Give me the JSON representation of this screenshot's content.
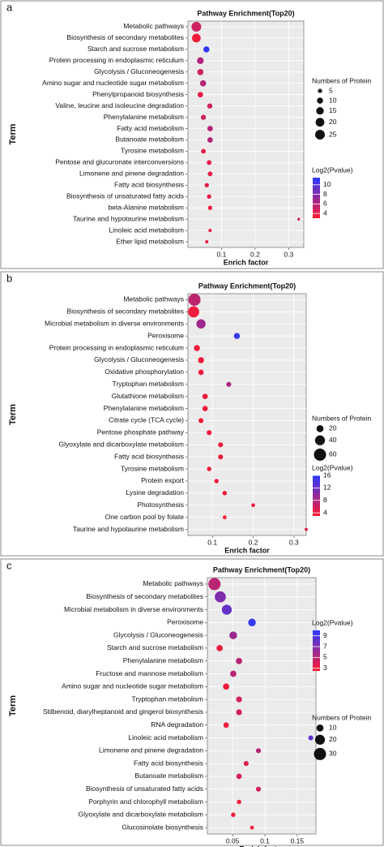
{
  "chart_data": [
    {
      "type": "bubble",
      "panel_label": "a",
      "title": "Pathway Enrichment(Top20)",
      "x_label": "Enrich factor",
      "y_label": "Term",
      "categories": [
        "Metabolic pathways",
        "Biosynthesis of secondary metabolites",
        "Starch and sucrose metabolism",
        "Protein processing in endoplasmic reticulum",
        "Glycolysis / Gluconeogenesis",
        "Amino sugar and nucleotide sugar metabolism",
        "Phenylpropanoid biosynthesis",
        "Valine, leucine and isoleucine degradation",
        "Phenylalanine metabolism",
        "Fatty acid metabolism",
        "Butanoate metabolism",
        "Tyrosine metabolism",
        "Pentose and glucuronate interconversions",
        "Limonene and pinene degradation",
        "Fatty acid biosynthesis",
        "Biosynthesis of unsaturated fatty acids",
        "beta-Alanine metabolism",
        "Taurine and hypotaurine metabolism",
        "Linoleic acid metabolism",
        "Ether lipid metabolism"
      ],
      "x": [
        0.025,
        0.025,
        0.055,
        0.037,
        0.037,
        0.045,
        0.037,
        0.065,
        0.046,
        0.066,
        0.066,
        0.046,
        0.063,
        0.066,
        0.056,
        0.063,
        0.066,
        0.33,
        0.066,
        0.056
      ],
      "sizes": [
        25,
        20,
        10,
        12,
        10,
        10,
        8,
        7,
        7,
        8,
        8,
        6,
        6,
        6,
        5,
        5,
        5,
        2,
        3,
        3
      ],
      "color_values": [
        5,
        3.5,
        11,
        6,
        5,
        6,
        4,
        5,
        5,
        6,
        6,
        4,
        4,
        4,
        4,
        4,
        4,
        5,
        3.5,
        3.5
      ],
      "xlim": [
        0,
        0.345
      ],
      "xticks": [
        0.1,
        0.2,
        0.3
      ],
      "size_legend_title": "Numbers of Protein",
      "size_legend": [
        5,
        10,
        15,
        20,
        25
      ],
      "color_legend_title": "Log2(Pvalue)",
      "clim": [
        3,
        11.5
      ],
      "cticks": [
        4,
        6,
        8,
        10
      ],
      "color_low": "#ff1a2e",
      "color_high": "#2a3aff"
    },
    {
      "type": "bubble",
      "panel_label": "b",
      "title": "Pathway Enrichment(Top20)",
      "x_label": "Enrich factor",
      "y_label": "Term",
      "categories": [
        "Metabolic pathways",
        "Biosynthesis of secondary metabolites",
        "Microbial metabolism in diverse environments",
        "Peroxisome",
        "Protein processing in endoplasmic reticulum",
        "Glycolysis / Gluconeogenesis",
        "Oxidative phosphorylation",
        "Tryptophan metabolism",
        "Glutathione metabolism",
        "Phenylalanine metabolism",
        "Citrate cycle (TCA cycle)",
        "Pentose phosphate pathway",
        "Glyoxylate and dicarboxylate metabolism",
        "Fatty acid biosynthesis",
        "Tyrosine metabolism",
        "Protein export",
        "Lysine degradation",
        "Photosynthesis",
        "One carbon pool by folate",
        "Taurine and hypotaurine metabolism"
      ],
      "x": [
        0.056,
        0.054,
        0.072,
        0.16,
        0.062,
        0.072,
        0.072,
        0.14,
        0.082,
        0.082,
        0.072,
        0.092,
        0.12,
        0.12,
        0.092,
        0.11,
        0.13,
        0.2,
        0.13,
        0.33
      ],
      "sizes": [
        60,
        50,
        35,
        15,
        15,
        15,
        12,
        10,
        12,
        12,
        10,
        10,
        10,
        10,
        8,
        8,
        8,
        6,
        6,
        4
      ],
      "color_values": [
        7,
        4,
        9,
        15,
        4,
        4,
        4,
        8,
        4,
        4,
        3.5,
        4,
        4,
        4,
        3.5,
        4,
        4,
        4,
        3.5,
        4
      ],
      "xlim": [
        0.04,
        0.33
      ],
      "xticks": [
        0.1,
        0.2,
        0.3
      ],
      "size_legend_title": "Numbers of Protein",
      "size_legend": [
        20,
        40,
        60
      ],
      "color_legend_title": "Log2(Pvalue)",
      "clim": [
        3,
        16
      ],
      "cticks": [
        4,
        8,
        12,
        16
      ],
      "color_low": "#ff1a2e",
      "color_high": "#2a3aff"
    },
    {
      "type": "bubble",
      "panel_label": "c",
      "title": "Pathway Enrichment(Top20)",
      "x_label": "Enrich factor",
      "y_label": "Term",
      "categories": [
        "Metabolic pathways",
        "Biosynthesis of secondary metabolites",
        "Microbial metabolism in diverse environments",
        "Peroxisome",
        "Glycolysis / Gluconeogenesis",
        "Starch and sucrose metabolism",
        "Phenylalanine metabolism",
        "Fructose and mannose metabolism",
        "Amino sugar and nucleotide sugar metabolism",
        "Tryptophan metabolism",
        "Stilbenoid, diarylheptanoid and gingerol biosynthesis",
        "RNA degradation",
        "Linoleic acid metabolism",
        "Limonene and pinene degradation",
        "Fatty acid biosynthesis",
        "Butanoate metabolism",
        "Biosynthesis of unsaturated fatty acids",
        "Porphyrin and chlorophyll metabolism",
        "Glyoxylate and dicarboxylate metabolism",
        "Glucosinolate biosynthesis"
      ],
      "x": [
        0.022,
        0.031,
        0.041,
        0.08,
        0.051,
        0.03,
        0.06,
        0.051,
        0.04,
        0.06,
        0.06,
        0.04,
        0.171,
        0.09,
        0.071,
        0.06,
        0.09,
        0.06,
        0.051,
        0.08
      ],
      "sizes": [
        30,
        25,
        20,
        12,
        12,
        8,
        8,
        8,
        8,
        7,
        7,
        6,
        5,
        5,
        5,
        6,
        5,
        4,
        4,
        3
      ],
      "color_values": [
        5,
        7,
        8,
        9.5,
        6,
        3,
        5,
        5,
        3,
        4,
        4,
        3,
        8,
        5,
        3.5,
        4,
        4,
        3,
        3,
        3
      ],
      "xlim": [
        0.011,
        0.179
      ],
      "xticks": [
        0.05,
        0.1,
        0.15
      ],
      "size_legend_title": "Numbers of Protein",
      "size_legend": [
        10,
        20,
        30
      ],
      "color_legend_title": "Log2(Pvalue)",
      "clim": [
        2.5,
        10
      ],
      "cticks": [
        3,
        5,
        7,
        9
      ],
      "color_low": "#ff1a2e",
      "color_high": "#2a3aff"
    }
  ]
}
